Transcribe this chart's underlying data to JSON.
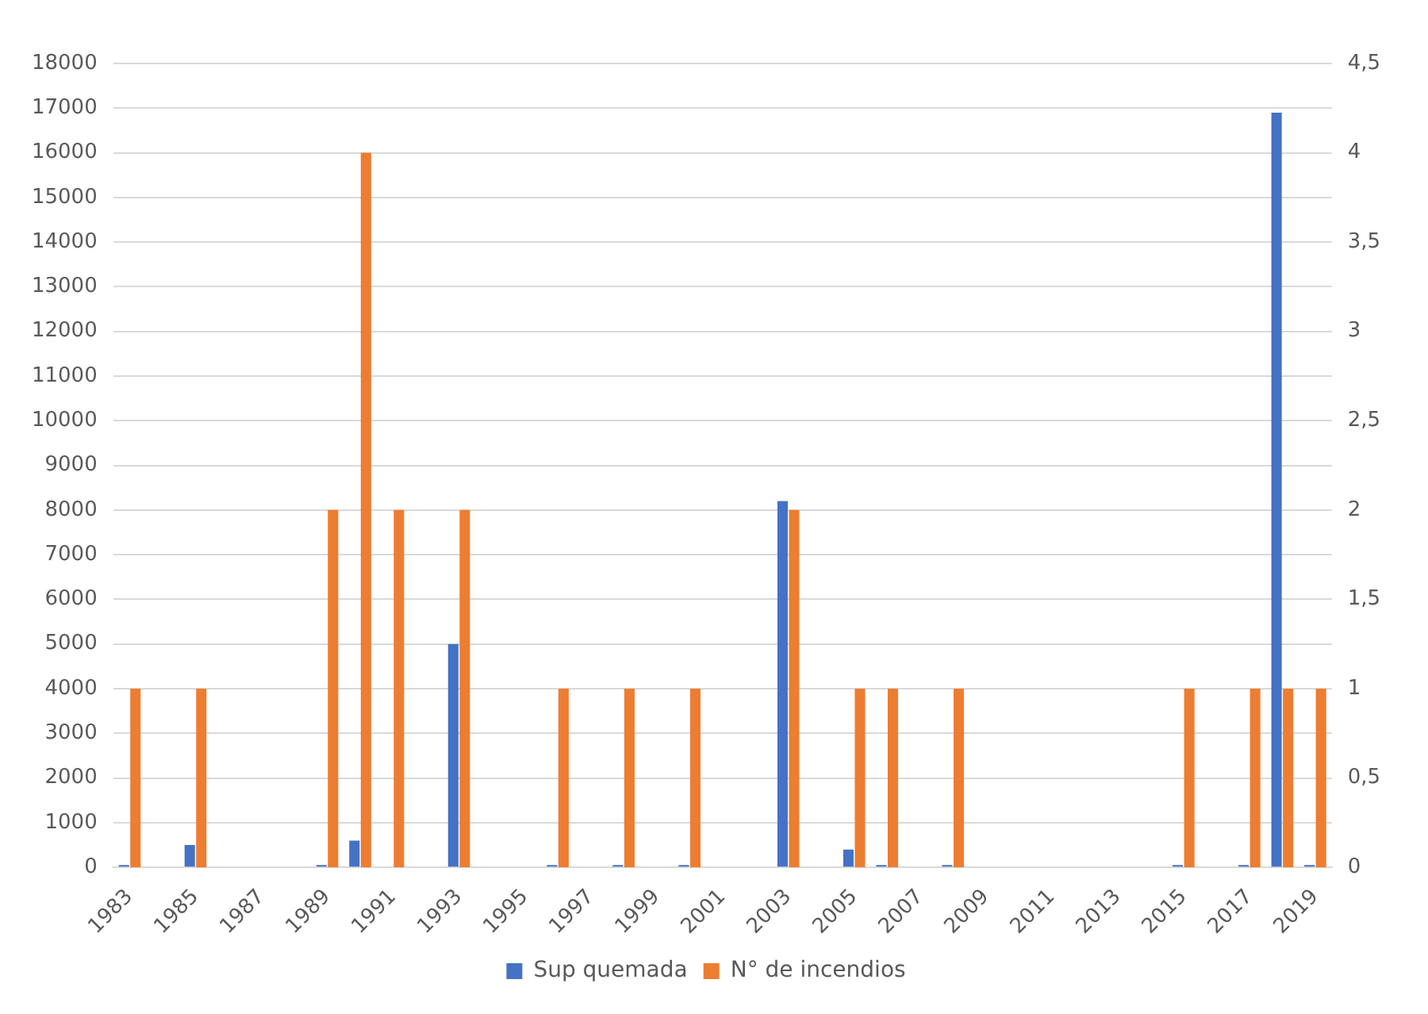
{
  "chart_data": {
    "type": "bar",
    "categories": [
      "1983",
      null,
      "1985",
      null,
      "1987",
      null,
      "1989",
      null,
      "1991",
      null,
      "1993",
      null,
      "1995",
      null,
      "1997",
      null,
      "1999",
      null,
      "2001",
      null,
      "2003",
      null,
      "2005",
      null,
      "2007",
      null,
      "2009",
      null,
      "2011",
      null,
      "2013",
      null,
      "2015",
      null,
      "2017",
      null,
      "2019"
    ],
    "series": [
      {
        "name": "Sup quemada",
        "color": "#4472c4",
        "values": [
          50,
          null,
          500,
          null,
          null,
          null,
          50,
          600,
          null,
          null,
          5000,
          null,
          null,
          50,
          null,
          50,
          null,
          50,
          null,
          null,
          8200,
          null,
          400,
          50,
          null,
          50,
          null,
          null,
          null,
          null,
          null,
          null,
          50,
          null,
          50,
          16900,
          50
        ]
      },
      {
        "name": "N° de incendios",
        "color": "#ed7d31",
        "axis": "y2",
        "values": [
          1,
          null,
          1,
          null,
          null,
          null,
          2,
          4,
          2,
          null,
          2,
          null,
          null,
          1,
          null,
          1,
          null,
          1,
          null,
          null,
          2,
          null,
          1,
          1,
          null,
          1,
          null,
          null,
          null,
          null,
          null,
          null,
          1,
          null,
          1,
          1,
          1
        ]
      }
    ],
    "ylim": [
      0,
      18000
    ],
    "yticks": [
      0,
      1000,
      2000,
      3000,
      4000,
      5000,
      6000,
      7000,
      8000,
      9000,
      10000,
      11000,
      12000,
      13000,
      14000,
      15000,
      16000,
      17000,
      18000
    ],
    "y2lim": [
      0,
      4.5
    ],
    "y2ticks": [
      0,
      {
        "value": 0.5,
        "label": "0,5"
      },
      1,
      {
        "value": 1.5,
        "label": "1,5"
      },
      2,
      {
        "value": 2.5,
        "label": "2,5"
      },
      3,
      {
        "value": 3.5,
        "label": "3,5"
      },
      4,
      {
        "value": 4.5,
        "label": "4,5"
      }
    ],
    "grid": "y",
    "legend": "bottom"
  }
}
